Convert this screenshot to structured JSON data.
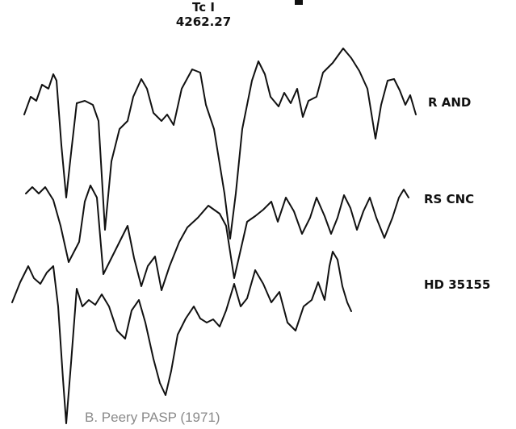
{
  "figure": {
    "line_label": {
      "element": "Tc I",
      "wavelength": "4262.27"
    },
    "spectra": [
      {
        "label": "R AND"
      },
      {
        "label": "RS CNC"
      },
      {
        "label": "HD 35155"
      }
    ],
    "caption": "B. Peery PASP (1971)"
  }
}
